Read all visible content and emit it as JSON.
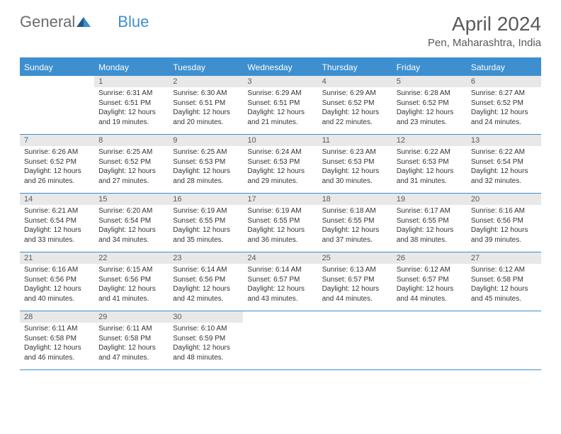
{
  "logo": {
    "part1": "General",
    "part2": "Blue"
  },
  "title": "April 2024",
  "location": "Pen, Maharashtra, India",
  "colors": {
    "accent": "#3d8fcf",
    "header_text": "#ffffff",
    "daynum_bg": "#e8e8e8",
    "text": "#5a5a5a",
    "body_text": "#333333",
    "background": "#ffffff"
  },
  "day_headers": [
    "Sunday",
    "Monday",
    "Tuesday",
    "Wednesday",
    "Thursday",
    "Friday",
    "Saturday"
  ],
  "labels": {
    "sunrise": "Sunrise:",
    "sunset": "Sunset:",
    "daylight": "Daylight:"
  },
  "weeks": [
    [
      null,
      {
        "n": "1",
        "sr": "6:31 AM",
        "ss": "6:51 PM",
        "dl": "12 hours and 19 minutes."
      },
      {
        "n": "2",
        "sr": "6:30 AM",
        "ss": "6:51 PM",
        "dl": "12 hours and 20 minutes."
      },
      {
        "n": "3",
        "sr": "6:29 AM",
        "ss": "6:51 PM",
        "dl": "12 hours and 21 minutes."
      },
      {
        "n": "4",
        "sr": "6:29 AM",
        "ss": "6:52 PM",
        "dl": "12 hours and 22 minutes."
      },
      {
        "n": "5",
        "sr": "6:28 AM",
        "ss": "6:52 PM",
        "dl": "12 hours and 23 minutes."
      },
      {
        "n": "6",
        "sr": "6:27 AM",
        "ss": "6:52 PM",
        "dl": "12 hours and 24 minutes."
      }
    ],
    [
      {
        "n": "7",
        "sr": "6:26 AM",
        "ss": "6:52 PM",
        "dl": "12 hours and 26 minutes."
      },
      {
        "n": "8",
        "sr": "6:25 AM",
        "ss": "6:52 PM",
        "dl": "12 hours and 27 minutes."
      },
      {
        "n": "9",
        "sr": "6:25 AM",
        "ss": "6:53 PM",
        "dl": "12 hours and 28 minutes."
      },
      {
        "n": "10",
        "sr": "6:24 AM",
        "ss": "6:53 PM",
        "dl": "12 hours and 29 minutes."
      },
      {
        "n": "11",
        "sr": "6:23 AM",
        "ss": "6:53 PM",
        "dl": "12 hours and 30 minutes."
      },
      {
        "n": "12",
        "sr": "6:22 AM",
        "ss": "6:53 PM",
        "dl": "12 hours and 31 minutes."
      },
      {
        "n": "13",
        "sr": "6:22 AM",
        "ss": "6:54 PM",
        "dl": "12 hours and 32 minutes."
      }
    ],
    [
      {
        "n": "14",
        "sr": "6:21 AM",
        "ss": "6:54 PM",
        "dl": "12 hours and 33 minutes."
      },
      {
        "n": "15",
        "sr": "6:20 AM",
        "ss": "6:54 PM",
        "dl": "12 hours and 34 minutes."
      },
      {
        "n": "16",
        "sr": "6:19 AM",
        "ss": "6:55 PM",
        "dl": "12 hours and 35 minutes."
      },
      {
        "n": "17",
        "sr": "6:19 AM",
        "ss": "6:55 PM",
        "dl": "12 hours and 36 minutes."
      },
      {
        "n": "18",
        "sr": "6:18 AM",
        "ss": "6:55 PM",
        "dl": "12 hours and 37 minutes."
      },
      {
        "n": "19",
        "sr": "6:17 AM",
        "ss": "6:55 PM",
        "dl": "12 hours and 38 minutes."
      },
      {
        "n": "20",
        "sr": "6:16 AM",
        "ss": "6:56 PM",
        "dl": "12 hours and 39 minutes."
      }
    ],
    [
      {
        "n": "21",
        "sr": "6:16 AM",
        "ss": "6:56 PM",
        "dl": "12 hours and 40 minutes."
      },
      {
        "n": "22",
        "sr": "6:15 AM",
        "ss": "6:56 PM",
        "dl": "12 hours and 41 minutes."
      },
      {
        "n": "23",
        "sr": "6:14 AM",
        "ss": "6:56 PM",
        "dl": "12 hours and 42 minutes."
      },
      {
        "n": "24",
        "sr": "6:14 AM",
        "ss": "6:57 PM",
        "dl": "12 hours and 43 minutes."
      },
      {
        "n": "25",
        "sr": "6:13 AM",
        "ss": "6:57 PM",
        "dl": "12 hours and 44 minutes."
      },
      {
        "n": "26",
        "sr": "6:12 AM",
        "ss": "6:57 PM",
        "dl": "12 hours and 44 minutes."
      },
      {
        "n": "27",
        "sr": "6:12 AM",
        "ss": "6:58 PM",
        "dl": "12 hours and 45 minutes."
      }
    ],
    [
      {
        "n": "28",
        "sr": "6:11 AM",
        "ss": "6:58 PM",
        "dl": "12 hours and 46 minutes."
      },
      {
        "n": "29",
        "sr": "6:11 AM",
        "ss": "6:58 PM",
        "dl": "12 hours and 47 minutes."
      },
      {
        "n": "30",
        "sr": "6:10 AM",
        "ss": "6:59 PM",
        "dl": "12 hours and 48 minutes."
      },
      null,
      null,
      null,
      null
    ]
  ]
}
